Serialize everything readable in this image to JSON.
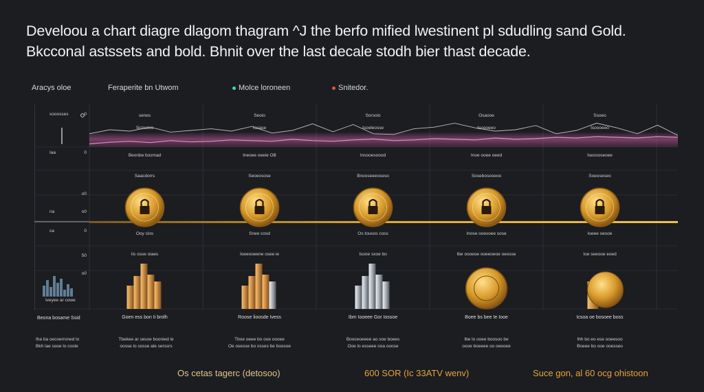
{
  "title": {
    "line1": "Develoou a chart diagre dlagom thagram ^J the berfo mified lwestinent pl sdudling sand Gold.",
    "line2": "Bkcconal astssets and bold.  Bhnit over the last decale stodh bier thast decade."
  },
  "legend": {
    "y_label": "Aracys oloe",
    "items": [
      {
        "label": "Feraperite bn Utwom",
        "color": "#8a8a8a"
      },
      {
        "label": "Molce loroneen",
        "color": "#3fd6b0"
      },
      {
        "label": "Snitedor.",
        "color": "#e0553c"
      }
    ]
  },
  "footer": {
    "left": "Os cetas tagerc (detosoo)",
    "middle": "600 SOR (Ic 33ATV wenv)",
    "right": "Suce gon, al 60 ocg ohistoon"
  },
  "axis": {
    "left_ticks": [
      {
        "label": "0",
        "top": "sooosses"
      },
      {
        "label": "0",
        "top": "Iaa"
      },
      {
        "label": "o0",
        "top": ""
      },
      {
        "label": "o0",
        "top": "na"
      },
      {
        "label": "0",
        "top": "ca"
      },
      {
        "label": "50",
        "top": ""
      },
      {
        "label": "o0",
        "top": ""
      }
    ],
    "mini_caption": "Iveyee ar cowe",
    "mini_footer": "Beona bosame Ssid",
    "mini_note": [
      "Iha ba oecoerroned lo",
      "Bkh lae sooe lo coste"
    ]
  },
  "colors": {
    "background": "#1b1d21",
    "line": "#f0a5d0",
    "band": "#c45aa0",
    "gold_line": "#e0a935",
    "coin": "#d89a2a"
  },
  "chart_data": {
    "type": "line",
    "title": "Develoou a chart diagre dlagom thagram ^J the berfo mified lwestinent pl sdudling sand Gold.",
    "xlabel": "",
    "ylabel": "Aracys oloe",
    "series": [
      {
        "name": "Feraperite bn Utwom",
        "values": [
          40,
          52,
          48,
          60,
          45,
          50,
          55,
          48,
          62,
          42,
          50,
          70,
          46,
          68,
          40,
          38,
          55,
          60,
          72,
          58,
          48,
          52,
          65,
          40,
          50,
          72,
          58,
          40,
          66,
          35
        ]
      },
      {
        "name": "Molce loroneen",
        "values": [
          30,
          35,
          38,
          34,
          40,
          36,
          38,
          42,
          40,
          38,
          44,
          40,
          38,
          42,
          45,
          40,
          42,
          46,
          44,
          42,
          48,
          44,
          46,
          50,
          48,
          52,
          50,
          48,
          52,
          50
        ]
      }
    ],
    "ylim": [
      0,
      100
    ],
    "columns": [
      {
        "header": [
          "senes",
          "Sozsouo"
        ],
        "sub1": "Beonbe bosmad",
        "sub2": "Saacdorrs",
        "coin_label": "Ooy cios",
        "asset_label": "Iis osse oiaes",
        "asset_type": "bars-gold",
        "caption": "Goen ess bon Ii brolh",
        "note": [
          "Tbekee ar sesoe boonied le",
          "oosse lo sosse ale serssrs"
        ]
      },
      {
        "header": [
          "Seoio",
          "Isoase"
        ],
        "sub1": "Ineoee oeeie OB",
        "sub2": "Seoeosose",
        "coin_label": "Snee cosd",
        "asset_label": "Ioeeooeene osee ie",
        "asset_type": "bars-mixed",
        "caption": "Roose lioosde Ivess",
        "note": [
          "Tboe oeee bo ooe oooee",
          "Oe osesse bo osses be boosoe"
        ]
      },
      {
        "header": [
          "Sorsoio",
          "Isoeleosse"
        ],
        "sub1": "Insooesoood",
        "sub2": "Bnooseeeoseso",
        "coin_label": "Os tousos coss",
        "asset_label": "Isooe sxoe bo",
        "asset_type": "bars-silver",
        "caption": "Ibm Iooeee Gor Iossoe",
        "note": [
          "Booceoeeee ao soe boees",
          "Ooe lo esseee ooa ooose"
        ]
      },
      {
        "header": [
          "Osaooe",
          "Isoooeeo"
        ],
        "sub1": "Inoe ooee oeed",
        "sub2": "Sosebosooeoo",
        "coin_label": "Inose ooesoee sose",
        "asset_label": "Ibe oooeoe ooeeoeoe oeosse",
        "asset_type": "coin-round",
        "caption": "Boee bs bee Ie Iooe",
        "note": [
          "Ibe lo ooee boosoo be",
          "oooe boeeee oo oeeoee"
        ]
      },
      {
        "header": [
          "Ssoeo",
          "Isoooeeo"
        ],
        "sub1": "Iseososeoee",
        "sub2": "Soeoseseo",
        "coin_label": "Ioeee oesoe",
        "asset_label": "Ioe seeooe eoed",
        "asset_type": "coin-stack",
        "caption": "Icsoa oe bosoee boss",
        "note": [
          "Ihh bo eo ese ooeesoo",
          "Boeee bo ooe ooesseo"
        ]
      }
    ]
  }
}
